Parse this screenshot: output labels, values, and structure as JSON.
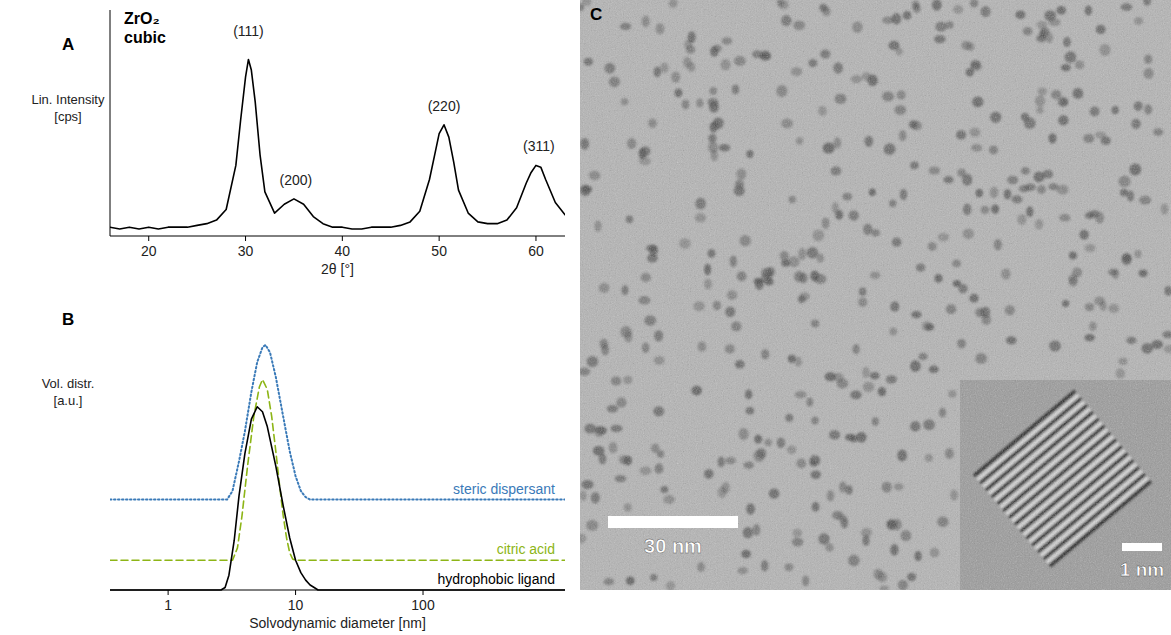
{
  "chart_data": [
    {
      "type": "line",
      "panel": "A",
      "title": "ZrO₂ cubic",
      "x_label": "2θ [°]",
      "y_label": "Lin. Intensity [cps]",
      "xlim": [
        16,
        63
      ],
      "ylim": [
        0,
        128
      ],
      "xticks": [
        20,
        30,
        40,
        50,
        60
      ],
      "tick_labels": "x",
      "grid": false,
      "color": "#000000",
      "line_style": "solid",
      "x": [
        16,
        17,
        18,
        19,
        20,
        21,
        22,
        23,
        24,
        25,
        26,
        27,
        28,
        29,
        29.5,
        30,
        30.3,
        30.6,
        31,
        31.5,
        32,
        33,
        34,
        35,
        36,
        37,
        38,
        39,
        40,
        41,
        42,
        43,
        44,
        45,
        46,
        47,
        48,
        49,
        49.5,
        50,
        50.5,
        51,
        51.5,
        52,
        53,
        54,
        55,
        56,
        57,
        58,
        59,
        59.5,
        60,
        60.5,
        61,
        62,
        63
      ],
      "values": [
        5,
        4,
        5,
        4,
        5,
        4,
        5,
        5,
        5,
        6,
        7,
        9,
        15,
        40,
        66,
        90,
        100,
        94,
        76,
        46,
        25,
        13,
        18,
        21,
        18,
        11,
        7,
        5,
        5,
        4,
        4,
        5,
        5,
        5,
        6,
        8,
        14,
        32,
        45,
        58,
        63,
        56,
        42,
        26,
        13,
        8,
        7,
        7,
        9,
        16,
        30,
        36,
        40,
        39,
        32,
        19,
        12
      ],
      "annotations": [
        {
          "text": "(111)",
          "x": 30.3,
          "y": 113
        },
        {
          "text": "(200)",
          "x": 35.2,
          "y": 29
        },
        {
          "text": "(220)",
          "x": 50.5,
          "y": 71
        },
        {
          "text": "(311)",
          "x": 60.3,
          "y": 48
        }
      ]
    },
    {
      "type": "line",
      "panel": "B",
      "x_label": "Solvodynamic diameter [nm]",
      "y_label": "Vol. distr. [a.u.]",
      "log": "x",
      "xlim": [
        0.35,
        1300
      ],
      "ylim": [
        0,
        105
      ],
      "xticks": [
        1,
        10,
        100
      ],
      "tick_labels": "x",
      "grid": false,
      "series": [
        {
          "name": "steric dispersant",
          "color": "#3a7ab8",
          "line_style": "dotted",
          "x": [
            0.35,
            2.9,
            3.2,
            3.6,
            4,
            4.5,
            5,
            5.5,
            5.8,
            6.3,
            7,
            8,
            9,
            10,
            11,
            12,
            13,
            1300
          ],
          "values": [
            36.5,
            36.5,
            40,
            52,
            64,
            80,
            92,
            98,
            99,
            96,
            86,
            70,
            56,
            46,
            40,
            37.5,
            36.5,
            36.5
          ]
        },
        {
          "name": "citric acid",
          "color": "#8db516",
          "line_style": "dashed",
          "x": [
            0.35,
            3.2,
            3.5,
            3.8,
            4.2,
            4.7,
            5.2,
            5.5,
            6,
            6.5,
            7,
            7.5,
            8,
            8.5,
            9,
            9.5,
            10,
            1300
          ],
          "values": [
            12,
            12,
            17,
            30,
            50,
            70,
            82,
            85,
            81,
            70,
            56,
            42,
            30,
            21,
            15,
            12.5,
            12,
            12
          ]
        },
        {
          "name": "hydrophobic ligand",
          "color": "#000000",
          "line_style": "solid",
          "x": [
            0.35,
            2.6,
            2.8,
            3,
            3.3,
            3.6,
            4,
            4.5,
            5,
            5.5,
            6,
            7,
            8,
            9,
            10,
            11,
            12,
            13,
            14,
            15,
            1300
          ],
          "values": [
            0,
            0,
            1,
            6,
            20,
            38,
            55,
            69,
            74,
            72,
            66,
            50,
            34,
            21,
            12,
            7,
            4,
            2,
            1,
            0,
            0
          ]
        }
      ]
    }
  ],
  "panel_c": {
    "label": "C",
    "scale_bar": "30 nm",
    "inset_scale_bar": "1 nm"
  }
}
